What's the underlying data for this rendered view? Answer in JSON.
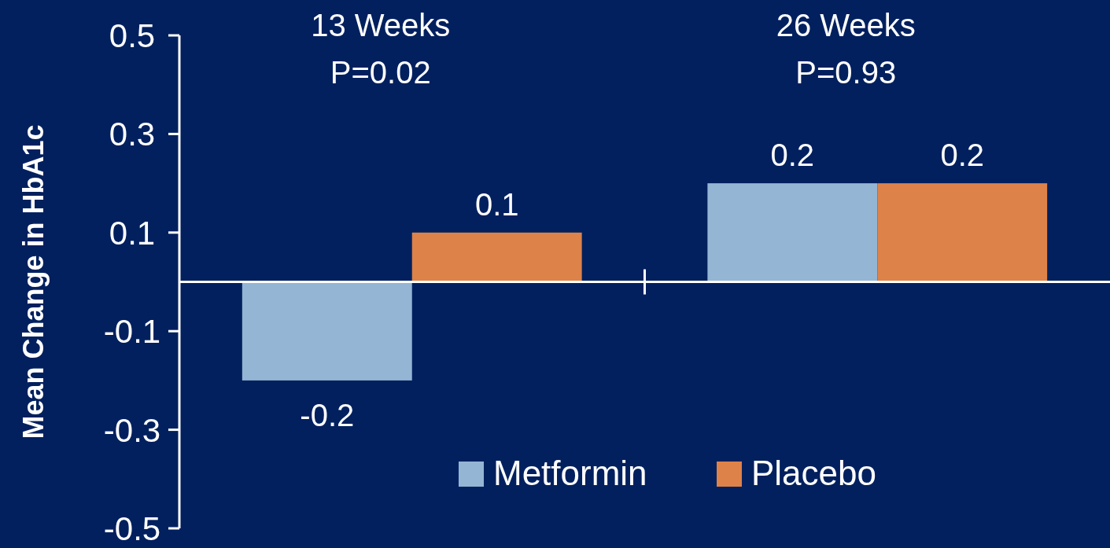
{
  "chart_data": {
    "type": "bar",
    "ylabel": "Mean Change in HbA1c",
    "categories": [
      "13 Weeks",
      "26 Weeks"
    ],
    "series": [
      {
        "name": "Metformin",
        "color": "#95b5d4",
        "values": [
          -0.2,
          0.2
        ]
      },
      {
        "name": "Placebo",
        "color": "#dd8249",
        "values": [
          0.1,
          0.2
        ]
      }
    ],
    "ylim": [
      -0.5,
      0.5
    ],
    "yticks": [
      -0.5,
      -0.3,
      -0.1,
      0.1,
      0.3,
      0.5
    ],
    "data_labels": true,
    "legend": "bottom right",
    "grid": false,
    "annotations": [
      "P=0.02",
      "P=0.93"
    ]
  }
}
